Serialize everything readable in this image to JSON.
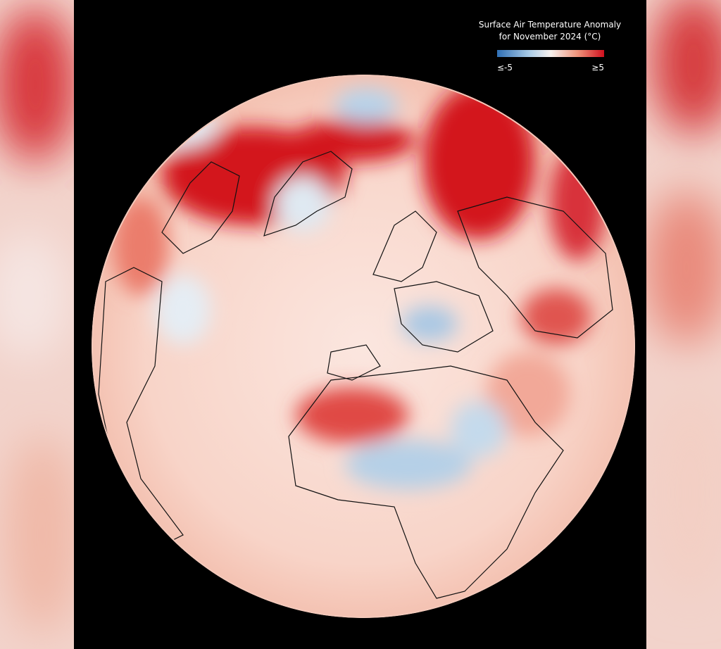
{
  "legend": {
    "title": [
      "Surface Air Temperature Anomaly",
      "for November 2024 (°C)"
    ],
    "scale": {
      "min": "≤-5",
      "max": "≥5"
    }
  }
}
